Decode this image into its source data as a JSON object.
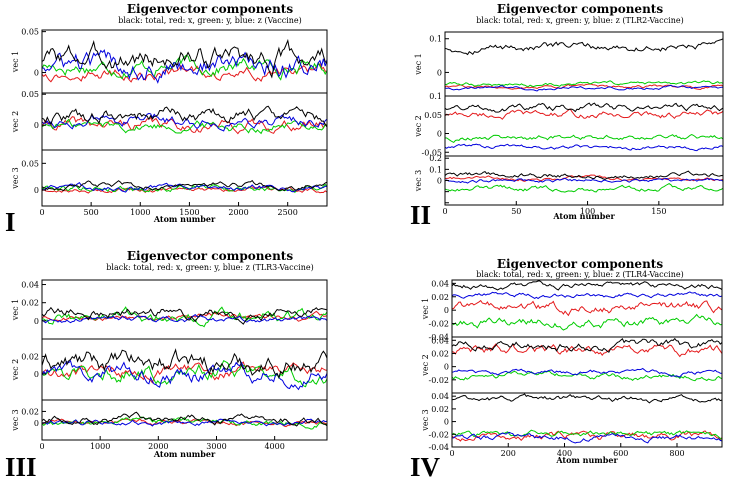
{
  "chart_data": [
    {
      "type": "line",
      "label": "I",
      "title": "Eigenvector components",
      "subtitle": "black: total, red: x, green: y, blue: z (Vaccine)",
      "xlabel": "Atom number",
      "xlim": [
        0,
        2900
      ],
      "xticks": [
        0,
        500,
        1000,
        1500,
        2000,
        2500
      ],
      "subplots": [
        {
          "ylabel": "vec 1",
          "ylim": [
            -0.025,
            0.052
          ],
          "yticks": [
            0,
            0.05
          ],
          "ytick_labels": [
            "0",
            "0.05"
          ],
          "levels": [
            0.018,
            0.0,
            0.008,
            0.01
          ],
          "amps": [
            0.012,
            0.006,
            0.008,
            0.012
          ]
        },
        {
          "ylabel": "vec 2",
          "ylim": [
            -0.04,
            0.052
          ],
          "yticks": [
            0,
            0.05
          ],
          "ytick_labels": [
            "0",
            "0.05"
          ],
          "levels": [
            0.015,
            0.0,
            0.0,
            0.008
          ],
          "amps": [
            0.01,
            0.008,
            0.007,
            0.008
          ]
        },
        {
          "ylabel": "vec 3",
          "ylim": [
            -0.03,
            0.075
          ],
          "yticks": [
            0,
            0.05
          ],
          "ytick_labels": [
            "0",
            "0.05"
          ],
          "levels": [
            0.008,
            0.0,
            0.005,
            0.004
          ],
          "amps": [
            0.005,
            0.004,
            0.006,
            0.005
          ]
        }
      ]
    },
    {
      "type": "line",
      "label": "II",
      "title": "Eigenvector components",
      "subtitle": "black: total, red: x, green: y, blue: z (TLR2-Vaccine)",
      "xlabel": "Atom number",
      "xlim": [
        0,
        195
      ],
      "xticks": [
        0,
        50,
        100,
        150
      ],
      "subplots": [
        {
          "ylabel": "vec 1",
          "ylim": [
            -0.07,
            0.12
          ],
          "yticks": [
            0,
            0.1
          ],
          "ytick_labels": [
            "0",
            "0.1"
          ],
          "levels": [
            0.075,
            -0.042,
            -0.035,
            -0.045
          ],
          "amps": [
            0.01,
            0.004,
            0.005,
            0.004
          ]
        },
        {
          "ylabel": "vec 2",
          "ylim": [
            -0.06,
            0.1
          ],
          "yticks": [
            -0.05,
            0,
            0.05,
            0.1
          ],
          "ytick_labels": [
            "-0.05",
            "0",
            "0.05",
            "0.1"
          ],
          "levels": [
            0.07,
            0.05,
            -0.01,
            -0.035
          ],
          "amps": [
            0.008,
            0.008,
            0.006,
            0.005
          ]
        },
        {
          "ylabel": "vec 3",
          "ylim": [
            -0.22,
            0.22
          ],
          "yticks": [
            -0.2,
            -0.1,
            0,
            0.1,
            0.2
          ],
          "ytick_labels": [
            "",
            "",
            "0",
            "0.1",
            "0.2"
          ],
          "levels": [
            0.05,
            0.02,
            -0.07,
            0.0
          ],
          "amps": [
            0.02,
            0.015,
            0.02,
            0.015
          ]
        }
      ]
    },
    {
      "type": "line",
      "label": "III",
      "title": "Eigenvector components",
      "subtitle": "black: total, red: x, green: y, blue: z (TLR3-Vaccine)",
      "xlabel": "Atom number",
      "xlim": [
        0,
        4900
      ],
      "xticks": [
        0,
        1000,
        2000,
        3000,
        4000
      ],
      "subplots": [
        {
          "ylabel": "vec 1",
          "ylim": [
            -0.02,
            0.045
          ],
          "yticks": [
            0,
            0.02,
            0.04
          ],
          "ytick_labels": [
            "0",
            "0.02",
            "0.04"
          ],
          "levels": [
            0.009,
            0.004,
            0.004,
            0.002
          ],
          "amps": [
            0.005,
            0.003,
            0.006,
            0.003
          ]
        },
        {
          "ylabel": "vec 2",
          "ylim": [
            -0.03,
            0.04
          ],
          "yticks": [
            0,
            0.02
          ],
          "ytick_labels": [
            "0",
            "0.02"
          ],
          "levels": [
            0.012,
            0.003,
            0.003,
            0.0
          ],
          "amps": [
            0.01,
            0.006,
            0.008,
            0.008
          ]
        },
        {
          "ylabel": "vec 3",
          "ylim": [
            -0.03,
            0.04
          ],
          "yticks": [
            0,
            0.02
          ],
          "ytick_labels": [
            "0",
            "0.02"
          ],
          "levels": [
            0.005,
            0.0,
            0.0,
            0.0
          ],
          "amps": [
            0.006,
            0.004,
            0.005,
            0.004
          ]
        }
      ]
    },
    {
      "type": "line",
      "label": "IV",
      "title": "Eigenvector components",
      "subtitle": "black: total, red: x, green: y, blue: z (TLR4-Vaccine)",
      "xlabel": "Atom number",
      "xlim": [
        0,
        960
      ],
      "xticks": [
        0,
        200,
        400,
        600,
        800
      ],
      "subplots": [
        {
          "ylabel": "vec 1",
          "ylim": [
            -0.04,
            0.045
          ],
          "yticks": [
            -0.04,
            -0.02,
            0,
            0.02,
            0.04
          ],
          "ytick_labels": [
            "-0.04",
            "-0.02",
            "0",
            "0.02",
            "0.04"
          ],
          "levels": [
            0.037,
            0.003,
            -0.018,
            0.022
          ],
          "amps": [
            0.004,
            0.006,
            0.006,
            0.003
          ]
        },
        {
          "ylabel": "vec 2",
          "ylim": [
            -0.04,
            0.045
          ],
          "yticks": [
            -0.04,
            -0.02,
            0,
            0.02,
            0.04
          ],
          "ytick_labels": [
            "",
            "-0.02",
            "0",
            "0.02",
            "0.04"
          ],
          "levels": [
            0.032,
            0.024,
            -0.015,
            -0.008
          ],
          "amps": [
            0.006,
            0.006,
            0.004,
            0.003
          ]
        },
        {
          "ylabel": "vec 3",
          "ylim": [
            -0.04,
            0.045
          ],
          "yticks": [
            -0.04,
            -0.02,
            0,
            0.02,
            0.04
          ],
          "ytick_labels": [
            "-0.04",
            "-0.02",
            "0",
            "0.02",
            "0.04"
          ],
          "levels": [
            0.035,
            -0.022,
            -0.02,
            -0.025
          ],
          "amps": [
            0.004,
            0.005,
            0.004,
            0.004
          ]
        }
      ]
    }
  ],
  "series_names": [
    "total",
    "x",
    "y",
    "z"
  ],
  "series_colors": [
    "#000000",
    "#e41a1c",
    "#00cc00",
    "#0000dd"
  ],
  "axis_color": "#000000"
}
